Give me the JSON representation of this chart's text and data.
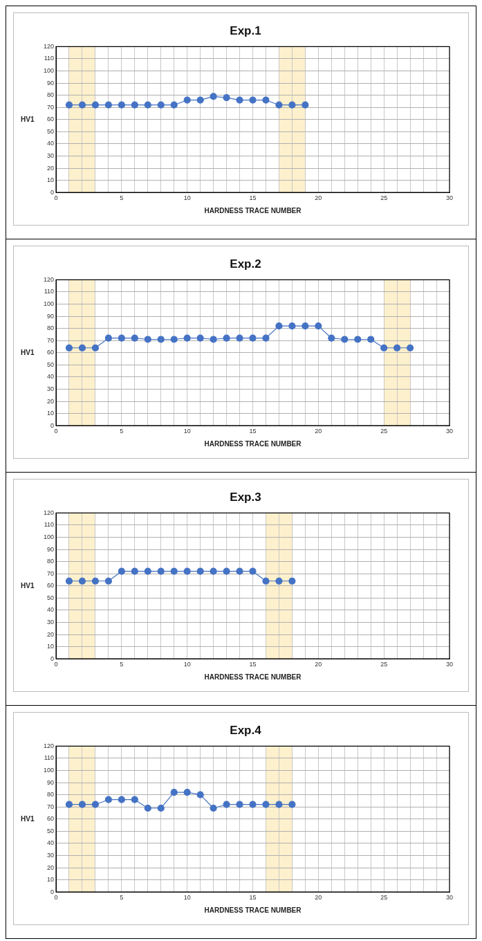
{
  "chart_data": [
    {
      "type": "line",
      "title": "Exp.1",
      "xlabel": "HARDNESS TRACE NUMBER",
      "ylabel": "HV1",
      "marker": "circle",
      "grid": true,
      "x": [
        1,
        2,
        3,
        4,
        5,
        6,
        7,
        8,
        9,
        10,
        11,
        12,
        13,
        14,
        15,
        16,
        17,
        18,
        19
      ],
      "series": [
        {
          "color": "#4472c4",
          "values": [
            72,
            72,
            72,
            72,
            72,
            72,
            72,
            72,
            72,
            76,
            76,
            79,
            78,
            76,
            76,
            76,
            72,
            72,
            72
          ]
        }
      ],
      "xlim": [
        0,
        30
      ],
      "ylim": [
        0,
        120
      ],
      "xticks": [
        0,
        {
          "value": 1,
          "label": null
        },
        {
          "value": 2,
          "label": null
        },
        {
          "value": 3,
          "label": null
        },
        {
          "value": 4,
          "label": null
        },
        5,
        {
          "value": 6,
          "label": null
        },
        {
          "value": 7,
          "label": null
        },
        {
          "value": 8,
          "label": null
        },
        {
          "value": 9,
          "label": null
        },
        10,
        {
          "value": 11,
          "label": null
        },
        {
          "value": 12,
          "label": null
        },
        {
          "value": 13,
          "label": null
        },
        {
          "value": 14,
          "label": null
        },
        15,
        {
          "value": 16,
          "label": null
        },
        {
          "value": 17,
          "label": null
        },
        {
          "value": 18,
          "label": null
        },
        {
          "value": 19,
          "label": null
        },
        20,
        {
          "value": 21,
          "label": null
        },
        {
          "value": 22,
          "label": null
        },
        {
          "value": 23,
          "label": null
        },
        {
          "value": 24,
          "label": null
        },
        25,
        {
          "value": 26,
          "label": null
        },
        {
          "value": 27,
          "label": null
        },
        {
          "value": 28,
          "label": null
        },
        {
          "value": 29,
          "label": null
        },
        30
      ],
      "yticks": [
        0,
        10,
        20,
        30,
        40,
        50,
        60,
        70,
        80,
        90,
        100,
        110,
        120
      ],
      "bands": [
        {
          "axis": "x",
          "from": 1,
          "to": 3,
          "color": "#fdf0cc"
        },
        {
          "axis": "x",
          "from": 17,
          "to": 19,
          "color": "#fdf0cc"
        }
      ]
    },
    {
      "type": "line",
      "title": "Exp.2",
      "xlabel": "HARDNESS TRACE NUMBER",
      "ylabel": "HV1",
      "marker": "circle",
      "grid": true,
      "x": [
        1,
        2,
        3,
        4,
        5,
        6,
        7,
        8,
        9,
        10,
        11,
        12,
        13,
        14,
        15,
        16,
        17,
        18,
        19,
        20,
        21,
        22,
        23,
        24,
        25,
        26,
        27
      ],
      "series": [
        {
          "color": "#4472c4",
          "values": [
            64,
            64,
            64,
            72,
            72,
            72,
            71,
            71,
            71,
            72,
            72,
            71,
            72,
            72,
            72,
            72,
            82,
            82,
            82,
            82,
            72,
            71,
            71,
            71,
            64,
            64,
            64
          ]
        }
      ],
      "xlim": [
        0,
        30
      ],
      "ylim": [
        0,
        120
      ],
      "xticks": [
        0,
        {
          "value": 1,
          "label": null
        },
        {
          "value": 2,
          "label": null
        },
        {
          "value": 3,
          "label": null
        },
        {
          "value": 4,
          "label": null
        },
        5,
        {
          "value": 6,
          "label": null
        },
        {
          "value": 7,
          "label": null
        },
        {
          "value": 8,
          "label": null
        },
        {
          "value": 9,
          "label": null
        },
        10,
        {
          "value": 11,
          "label": null
        },
        {
          "value": 12,
          "label": null
        },
        {
          "value": 13,
          "label": null
        },
        {
          "value": 14,
          "label": null
        },
        15,
        {
          "value": 16,
          "label": null
        },
        {
          "value": 17,
          "label": null
        },
        {
          "value": 18,
          "label": null
        },
        {
          "value": 19,
          "label": null
        },
        20,
        {
          "value": 21,
          "label": null
        },
        {
          "value": 22,
          "label": null
        },
        {
          "value": 23,
          "label": null
        },
        {
          "value": 24,
          "label": null
        },
        25,
        {
          "value": 26,
          "label": null
        },
        {
          "value": 27,
          "label": null
        },
        {
          "value": 28,
          "label": null
        },
        {
          "value": 29,
          "label": null
        },
        30
      ],
      "yticks": [
        0,
        10,
        20,
        30,
        40,
        50,
        60,
        70,
        80,
        90,
        100,
        110,
        120
      ],
      "bands": [
        {
          "axis": "x",
          "from": 1,
          "to": 3,
          "color": "#fdf0cc"
        },
        {
          "axis": "x",
          "from": 25,
          "to": 27,
          "color": "#fdf0cc"
        }
      ]
    },
    {
      "type": "line",
      "title": "Exp.3",
      "xlabel": "HARDNESS TRACE NUMBER",
      "ylabel": "HV1",
      "marker": "circle",
      "grid": true,
      "x": [
        1,
        2,
        3,
        4,
        5,
        6,
        7,
        8,
        9,
        10,
        11,
        12,
        13,
        14,
        15,
        16,
        17,
        18
      ],
      "series": [
        {
          "color": "#4472c4",
          "values": [
            64,
            64,
            64,
            64,
            72,
            72,
            72,
            72,
            72,
            72,
            72,
            72,
            72,
            72,
            72,
            64,
            64,
            64
          ]
        }
      ],
      "xlim": [
        0,
        30
      ],
      "ylim": [
        0,
        120
      ],
      "xticks": [
        0,
        {
          "value": 1,
          "label": null
        },
        {
          "value": 2,
          "label": null
        },
        {
          "value": 3,
          "label": null
        },
        {
          "value": 4,
          "label": null
        },
        5,
        {
          "value": 6,
          "label": null
        },
        {
          "value": 7,
          "label": null
        },
        {
          "value": 8,
          "label": null
        },
        {
          "value": 9,
          "label": null
        },
        10,
        {
          "value": 11,
          "label": null
        },
        {
          "value": 12,
          "label": null
        },
        {
          "value": 13,
          "label": null
        },
        {
          "value": 14,
          "label": null
        },
        15,
        {
          "value": 16,
          "label": null
        },
        {
          "value": 17,
          "label": null
        },
        {
          "value": 18,
          "label": null
        },
        {
          "value": 19,
          "label": null
        },
        20,
        {
          "value": 21,
          "label": null
        },
        {
          "value": 22,
          "label": null
        },
        {
          "value": 23,
          "label": null
        },
        {
          "value": 24,
          "label": null
        },
        25,
        {
          "value": 26,
          "label": null
        },
        {
          "value": 27,
          "label": null
        },
        {
          "value": 28,
          "label": null
        },
        {
          "value": 29,
          "label": null
        },
        30
      ],
      "yticks": [
        0,
        10,
        20,
        30,
        40,
        50,
        60,
        70,
        80,
        90,
        100,
        110,
        120
      ],
      "bands": [
        {
          "axis": "x",
          "from": 1,
          "to": 3,
          "color": "#fdf0cc"
        },
        {
          "axis": "x",
          "from": 16,
          "to": 18,
          "color": "#fdf0cc"
        }
      ]
    },
    {
      "type": "line",
      "title": "Exp.4",
      "xlabel": "HARDNESS TRACE NUMBER",
      "ylabel": "HV1",
      "marker": "circle",
      "grid": true,
      "x": [
        1,
        2,
        3,
        4,
        5,
        6,
        7,
        8,
        9,
        10,
        11,
        12,
        13,
        14,
        15,
        16,
        17,
        18
      ],
      "series": [
        {
          "color": "#4472c4",
          "values": [
            72,
            72,
            72,
            76,
            76,
            76,
            69,
            69,
            82,
            82,
            80,
            69,
            72,
            72,
            72,
            72,
            72,
            72
          ]
        }
      ],
      "xlim": [
        0,
        30
      ],
      "ylim": [
        0,
        120
      ],
      "xticks": [
        0,
        {
          "value": 1,
          "label": null
        },
        {
          "value": 2,
          "label": null
        },
        {
          "value": 3,
          "label": null
        },
        {
          "value": 4,
          "label": null
        },
        5,
        {
          "value": 6,
          "label": null
        },
        {
          "value": 7,
          "label": null
        },
        {
          "value": 8,
          "label": null
        },
        {
          "value": 9,
          "label": null
        },
        10,
        {
          "value": 11,
          "label": null
        },
        {
          "value": 12,
          "label": null
        },
        {
          "value": 13,
          "label": null
        },
        {
          "value": 14,
          "label": null
        },
        15,
        {
          "value": 16,
          "label": null
        },
        {
          "value": 17,
          "label": null
        },
        {
          "value": 18,
          "label": null
        },
        {
          "value": 19,
          "label": null
        },
        20,
        {
          "value": 21,
          "label": null
        },
        {
          "value": 22,
          "label": null
        },
        {
          "value": 23,
          "label": null
        },
        {
          "value": 24,
          "label": null
        },
        25,
        {
          "value": 26,
          "label": null
        },
        {
          "value": 27,
          "label": null
        },
        {
          "value": 28,
          "label": null
        },
        {
          "value": 29,
          "label": null
        },
        30
      ],
      "yticks": [
        0,
        10,
        20,
        30,
        40,
        50,
        60,
        70,
        80,
        90,
        100,
        110,
        120
      ],
      "bands": [
        {
          "axis": "x",
          "from": 1,
          "to": 3,
          "color": "#fdf0cc"
        },
        {
          "axis": "x",
          "from": 16,
          "to": 18,
          "color": "#fdf0cc"
        }
      ]
    }
  ]
}
